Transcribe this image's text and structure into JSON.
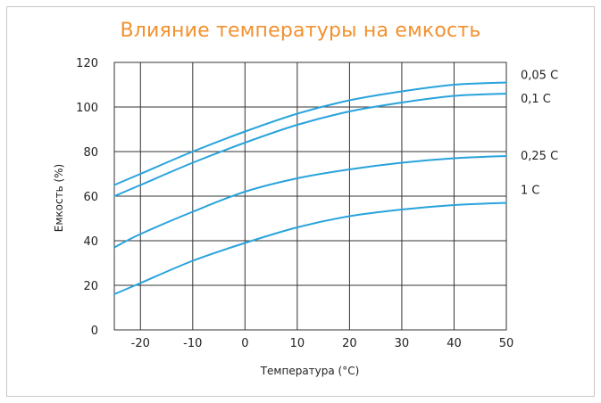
{
  "chart_data": {
    "type": "line",
    "title": "Влияние температуры на емкость",
    "xlabel": "Температура (°C)",
    "ylabel": "Емкость (%)",
    "xlim": [
      -25,
      50
    ],
    "ylim": [
      0,
      120
    ],
    "xticks": [
      -20,
      -10,
      0,
      10,
      20,
      30,
      40,
      50
    ],
    "yticks": [
      0,
      20,
      40,
      60,
      80,
      100,
      120
    ],
    "grid": true,
    "colors": {
      "line": "#29a3dc",
      "title": "#f2912e",
      "grid": "#333333"
    },
    "series": [
      {
        "name": "0,05 C",
        "x": [
          -25,
          -20,
          -10,
          0,
          10,
          20,
          30,
          40,
          50
        ],
        "y": [
          65,
          70,
          80,
          89,
          97,
          103,
          107,
          110,
          111
        ]
      },
      {
        "name": "0,1 C",
        "x": [
          -25,
          -20,
          -10,
          0,
          10,
          20,
          30,
          40,
          50
        ],
        "y": [
          60,
          65,
          75,
          84,
          92,
          98,
          102,
          105,
          106
        ]
      },
      {
        "name": "0,25 C",
        "x": [
          -25,
          -20,
          -10,
          0,
          10,
          20,
          30,
          40,
          50
        ],
        "y": [
          37,
          43,
          53,
          62,
          68,
          72,
          75,
          77,
          78
        ]
      },
      {
        "name": "1 C",
        "x": [
          -25,
          -20,
          -10,
          0,
          10,
          20,
          30,
          40,
          50
        ],
        "y": [
          16,
          21,
          31,
          39,
          46,
          51,
          54,
          56,
          57
        ]
      }
    ]
  }
}
